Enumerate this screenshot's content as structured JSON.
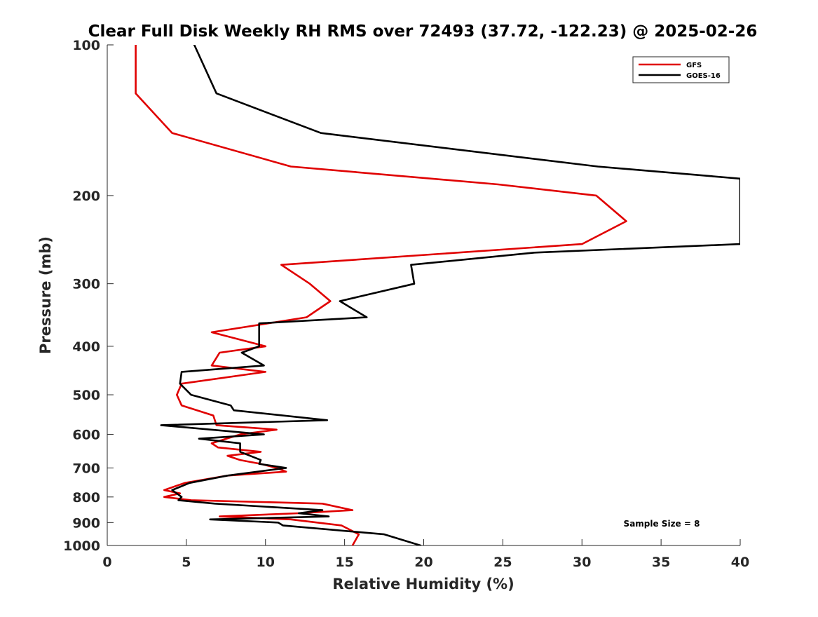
{
  "chart_data": {
    "type": "line",
    "title": "Clear Full Disk Weekly RH RMS over 72493 (37.72, -122.23) @ 2025-02-26",
    "xlabel": "Relative Humidity (%)",
    "ylabel": "Pressure (mb)",
    "xlim": [
      0,
      40
    ],
    "ylim": [
      100,
      1000
    ],
    "y_scale": "log",
    "y_reversed": true,
    "xticks": [
      0,
      5,
      10,
      15,
      20,
      25,
      30,
      35,
      40
    ],
    "yticks": [
      100,
      200,
      300,
      400,
      500,
      600,
      700,
      800,
      900,
      1000
    ],
    "grid": false,
    "legend_position": "top-right",
    "annotation": "Sample Size = 8",
    "series": [
      {
        "name": "GFS",
        "color": "#e00000",
        "points": [
          [
            1.8,
            100
          ],
          [
            1.8,
            125
          ],
          [
            4.1,
            150
          ],
          [
            11.6,
            175
          ],
          [
            24.7,
            190
          ],
          [
            30.9,
            200
          ],
          [
            32.8,
            225
          ],
          [
            30.0,
            250
          ],
          [
            11.0,
            275
          ],
          [
            12.8,
            300
          ],
          [
            14.1,
            325
          ],
          [
            12.6,
            350
          ],
          [
            6.6,
            375
          ],
          [
            10.0,
            400
          ],
          [
            7.1,
            412
          ],
          [
            6.6,
            437
          ],
          [
            10.0,
            450
          ],
          [
            4.7,
            475
          ],
          [
            4.4,
            500
          ],
          [
            4.7,
            525
          ],
          [
            6.7,
            550
          ],
          [
            6.9,
            575
          ],
          [
            10.7,
            587
          ],
          [
            8.4,
            600
          ],
          [
            6.6,
            625
          ],
          [
            7.0,
            637
          ],
          [
            9.7,
            650
          ],
          [
            7.6,
            662
          ],
          [
            8.4,
            675
          ],
          [
            9.7,
            687
          ],
          [
            10.7,
            700
          ],
          [
            11.3,
            712
          ],
          [
            7.6,
            725
          ],
          [
            4.9,
            750
          ],
          [
            3.6,
            775
          ],
          [
            4.6,
            787
          ],
          [
            3.6,
            800
          ],
          [
            5.3,
            812
          ],
          [
            13.6,
            825
          ],
          [
            15.5,
            850
          ],
          [
            12.1,
            862
          ],
          [
            7.1,
            875
          ],
          [
            11.6,
            887
          ],
          [
            14.8,
            912
          ],
          [
            15.9,
            950
          ],
          [
            15.5,
            1000
          ]
        ]
      },
      {
        "name": "GOES-16",
        "color": "#000000",
        "points": [
          [
            5.5,
            100
          ],
          [
            6.9,
            125
          ],
          [
            13.5,
            150
          ],
          [
            31.0,
            175
          ],
          [
            40.0,
            185
          ],
          [
            40.0,
            250
          ],
          [
            27.0,
            260
          ],
          [
            19.2,
            275
          ],
          [
            19.4,
            300
          ],
          [
            14.7,
            325
          ],
          [
            16.4,
            350
          ],
          [
            9.6,
            360
          ],
          [
            9.6,
            400
          ],
          [
            8.5,
            412
          ],
          [
            9.9,
            437
          ],
          [
            4.7,
            450
          ],
          [
            4.6,
            475
          ],
          [
            5.3,
            500
          ],
          [
            7.8,
            525
          ],
          [
            8.0,
            537
          ],
          [
            13.9,
            562
          ],
          [
            3.4,
            575
          ],
          [
            9.9,
            600
          ],
          [
            5.8,
            612
          ],
          [
            8.4,
            625
          ],
          [
            8.4,
            650
          ],
          [
            9.7,
            675
          ],
          [
            9.6,
            687
          ],
          [
            11.3,
            700
          ],
          [
            7.6,
            725
          ],
          [
            5.2,
            750
          ],
          [
            4.1,
            775
          ],
          [
            4.7,
            800
          ],
          [
            4.5,
            812
          ],
          [
            6.8,
            825
          ],
          [
            13.6,
            850
          ],
          [
            12.1,
            862
          ],
          [
            14.0,
            875
          ],
          [
            6.5,
            887
          ],
          [
            10.8,
            900
          ],
          [
            11.1,
            912
          ],
          [
            17.5,
            950
          ],
          [
            19.8,
            1000
          ]
        ]
      }
    ]
  }
}
